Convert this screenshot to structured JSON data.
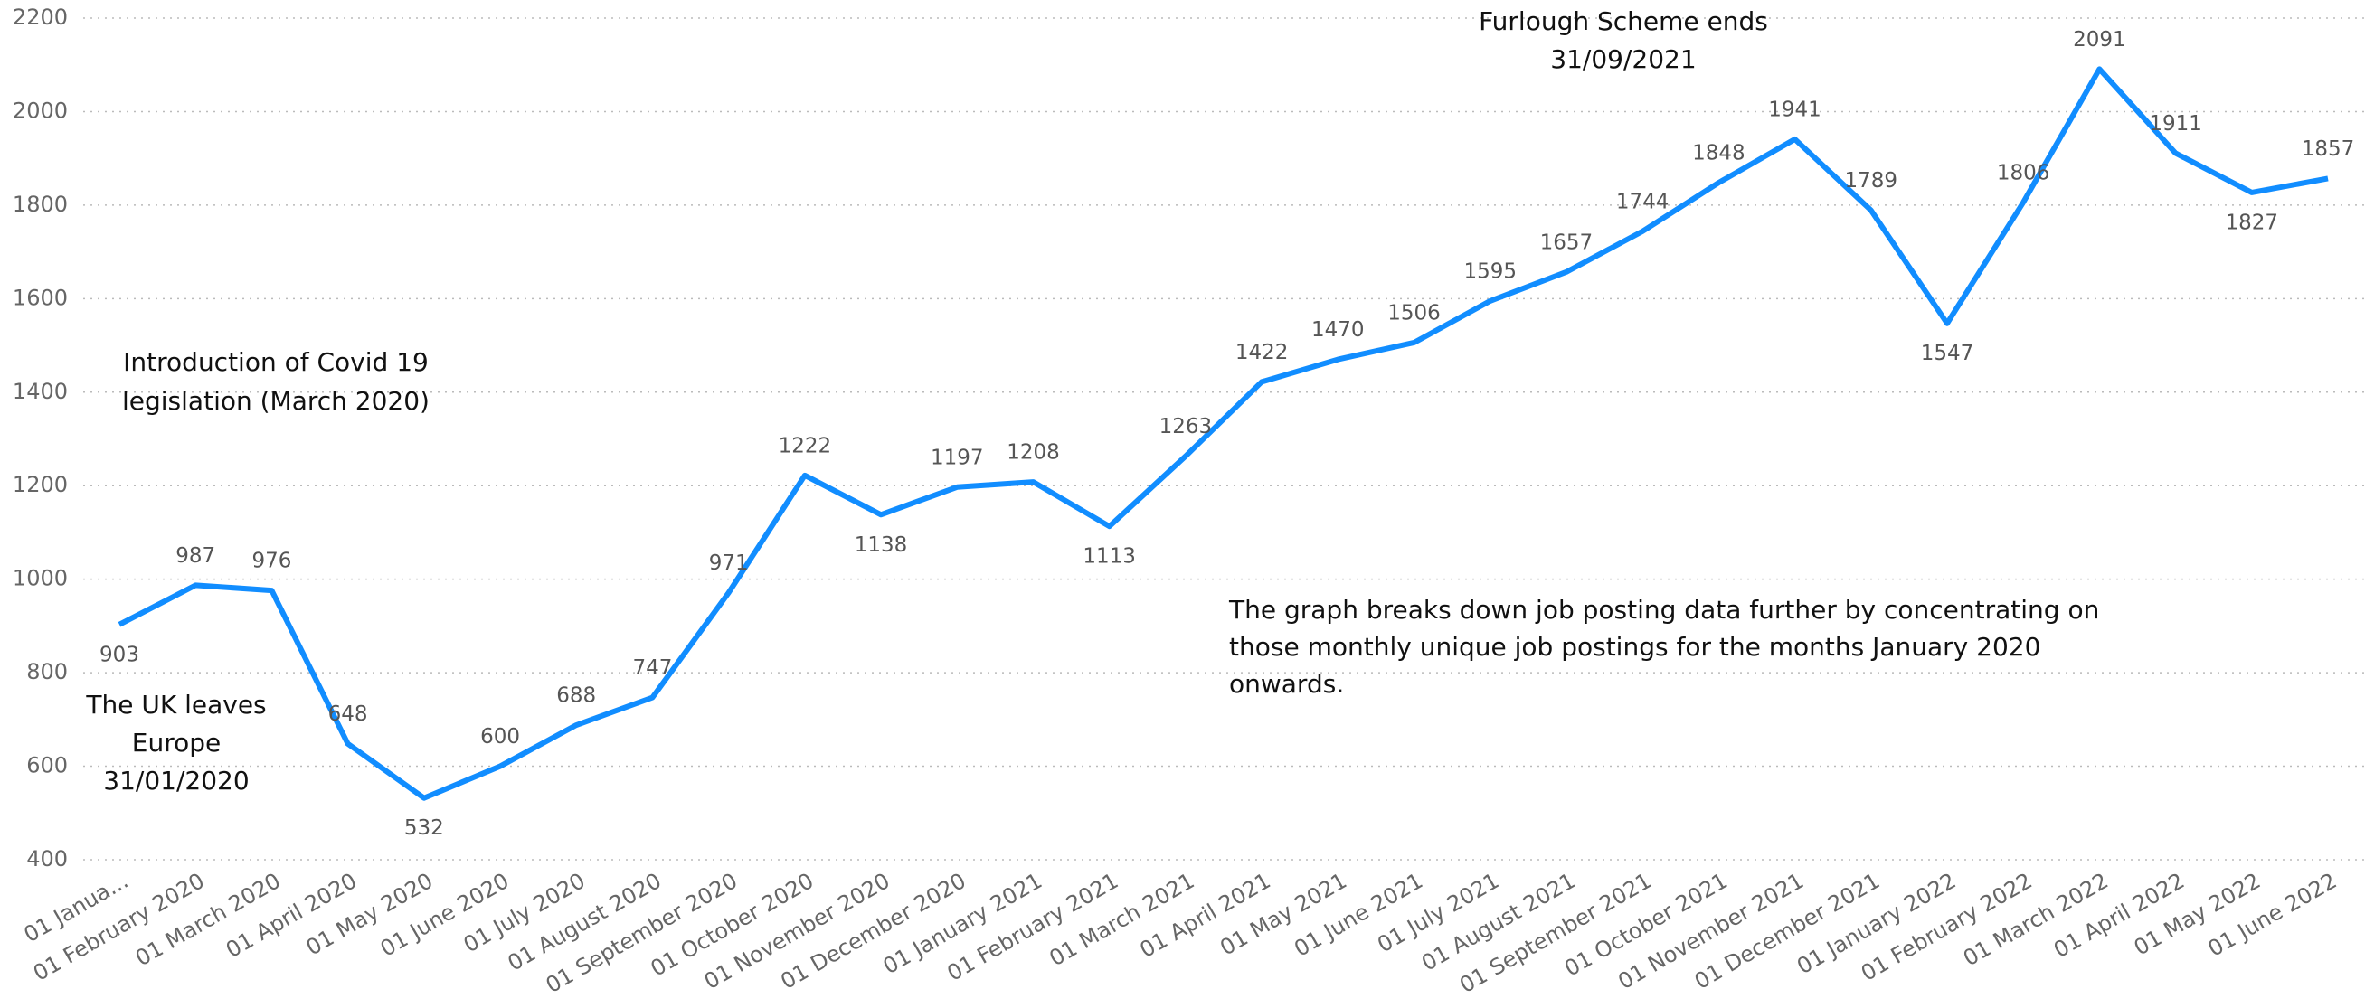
{
  "chart_data": {
    "type": "line",
    "categories": [
      "01 Janua...",
      "01 February 2020",
      "01 March 2020",
      "01 April 2020",
      "01 May 2020",
      "01 June 2020",
      "01 July 2020",
      "01 August 2020",
      "01 September 2020",
      "01 October 2020",
      "01 November 2020",
      "01 December 2020",
      "01 January 2021",
      "01 February 2021",
      "01 March 2021",
      "01 April 2021",
      "01 May 2021",
      "01 June 2021",
      "01 July 2021",
      "01 August 2021",
      "01 September 2021",
      "01 October 2021",
      "01 November 2021",
      "01 December 2021",
      "01 January 2022",
      "01 February 2022",
      "01 March 2022",
      "01 April 2022",
      "01 May 2022",
      "01 June 2022"
    ],
    "series": [
      {
        "color": "#118DFF",
        "values": [
          903,
          987,
          976,
          648,
          532,
          600,
          688,
          747,
          971,
          1222,
          1138,
          1197,
          1208,
          1113,
          1263,
          1422,
          1470,
          1506,
          1595,
          1657,
          1744,
          1848,
          1941,
          1789,
          1547,
          1806,
          2091,
          1911,
          1827,
          1857
        ]
      }
    ],
    "ylim": [
      400,
      2200
    ],
    "yticks": [
      400,
      600,
      800,
      1000,
      1200,
      1400,
      1600,
      1800,
      2000,
      2200
    ],
    "grid": true,
    "annotations": [
      {
        "lines": [
          "Furlough Scheme ends",
          "31/09/2021"
        ]
      },
      {
        "lines": [
          "Introduction of Covid 19",
          "legislation (March 2020)"
        ]
      },
      {
        "lines": [
          "The UK leaves",
          "Europe",
          "31/01/2020"
        ]
      },
      {
        "lines": [
          "The graph breaks down job posting data further by concentrating on",
          "those monthly unique  job postings for the months January 2020",
          "onwards."
        ]
      }
    ]
  }
}
